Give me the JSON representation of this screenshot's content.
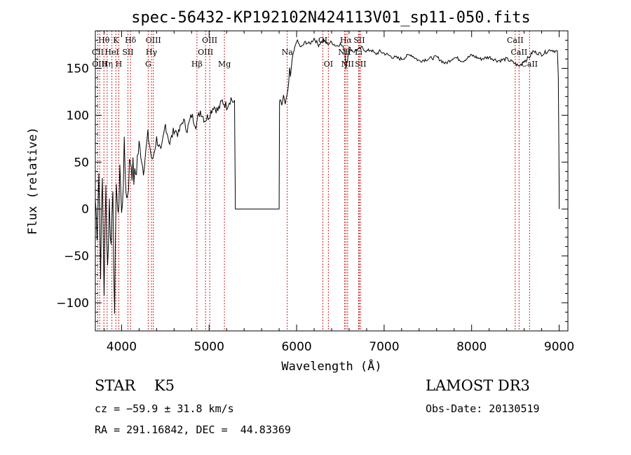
{
  "chart_data": {
    "type": "line",
    "title": "spec-56432-KP192102N424113V01_sp11-050.fits",
    "xlabel": "Wavelength (Å)",
    "ylabel": "Flux (relative)",
    "xlim": [
      3700,
      9100
    ],
    "ylim": [
      -130,
      190
    ],
    "xticks": [
      4000,
      5000,
      6000,
      7000,
      8000,
      9000
    ],
    "xtick_labels": [
      "4000",
      "5000",
      "6000",
      "7000",
      "8000",
      "9000"
    ],
    "yticks": [
      -100,
      -50,
      0,
      50,
      100,
      150
    ],
    "ytick_labels": [
      "−100",
      "−50",
      "0",
      "50",
      "100",
      "150"
    ],
    "series": [
      {
        "name": "spectrum",
        "x": [
          3700,
          3720,
          3740,
          3760,
          3780,
          3800,
          3820,
          3840,
          3860,
          3880,
          3900,
          3920,
          3940,
          3960,
          3980,
          4000,
          4030,
          4060,
          4100,
          4150,
          4200,
          4250,
          4300,
          4350,
          4400,
          4450,
          4500,
          4550,
          4600,
          4650,
          4700,
          4750,
          4800,
          4850,
          4900,
          4950,
          5000,
          5050,
          5100,
          5150,
          5200,
          5250,
          5290,
          5300,
          5305,
          5310,
          5800,
          5805,
          5810,
          5830,
          5850,
          5870,
          5890,
          5910,
          5920,
          5930,
          5950,
          5970,
          6000,
          6050,
          6100,
          6150,
          6200,
          6250,
          6300,
          6350,
          6400,
          6450,
          6500,
          6550,
          6563,
          6600,
          6650,
          6700,
          6750,
          6800,
          6850,
          6900,
          6950,
          7000,
          7100,
          7200,
          7300,
          7400,
          7500,
          7600,
          7700,
          7800,
          7900,
          8000,
          8100,
          8200,
          8300,
          8400,
          8500,
          8540,
          8600,
          8660,
          8700,
          8800,
          8900,
          8980,
          8990,
          9000,
          9001
        ],
        "y": [
          10,
          -20,
          40,
          -60,
          30,
          -85,
          20,
          -60,
          5,
          -40,
          30,
          -127,
          40,
          -20,
          50,
          -10,
          60,
          10,
          55,
          30,
          70,
          40,
          80,
          50,
          75,
          60,
          90,
          70,
          85,
          80,
          95,
          85,
          100,
          90,
          105,
          95,
          100,
          110,
          105,
          115,
          110,
          118,
          112,
          0,
          0,
          0,
          0,
          115,
          118,
          110,
          120,
          112,
          120,
          135,
          150,
          140,
          160,
          168,
          180,
          172,
          178,
          176,
          182,
          175,
          180,
          176,
          178,
          174,
          176,
          170,
          150,
          172,
          168,
          170,
          172,
          168,
          170,
          165,
          168,
          166,
          162,
          160,
          165,
          158,
          160,
          162,
          155,
          162,
          158,
          164,
          160,
          162,
          158,
          160,
          155,
          152,
          158,
          162,
          168,
          165,
          170,
          168,
          140,
          30,
          0
        ],
        "visible": true
      }
    ],
    "line_markers": [
      {
        "label": "Hθ",
        "wave": 3798,
        "row": 0
      },
      {
        "label": "CII",
        "wave": 3728,
        "row": 1
      },
      {
        "label": "OIII",
        "wave": 3750,
        "row": 2
      },
      {
        "label": "Hη",
        "wave": 3835,
        "row": 2
      },
      {
        "label": "HeI",
        "wave": 3889,
        "row": 1
      },
      {
        "label": "K",
        "wave": 3934,
        "row": 0
      },
      {
        "label": "H",
        "wave": 3968,
        "row": 2
      },
      {
        "label": "SII",
        "wave": 4072,
        "row": 1
      },
      {
        "label": "Hδ",
        "wave": 4102,
        "row": 0
      },
      {
        "label": "OIII",
        "wave": 4363,
        "row": 0
      },
      {
        "label": "Hγ",
        "wave": 4341,
        "row": 1
      },
      {
        "label": "G",
        "wave": 4304,
        "row": 2
      },
      {
        "label": "Hβ",
        "wave": 4861,
        "row": 2
      },
      {
        "label": "OIII",
        "wave": 4959,
        "row": 1
      },
      {
        "label": "OIII",
        "wave": 5007,
        "row": 0
      },
      {
        "label": "Mg",
        "wave": 5175,
        "row": 2
      },
      {
        "label": "Na",
        "wave": 5893,
        "row": 1
      },
      {
        "label": "OI",
        "wave": 6300,
        "row": 0
      },
      {
        "label": "OI",
        "wave": 6363,
        "row": 2
      },
      {
        "label": "Hα",
        "wave": 6563,
        "row": 0
      },
      {
        "label": "NII",
        "wave": 6548,
        "row": 1
      },
      {
        "label": "NII",
        "wave": 6583,
        "row": 2
      },
      {
        "label": "SII",
        "wave": 6716,
        "row": 0
      },
      {
        "label": "SII",
        "wave": 6731,
        "row": 2
      },
      {
        "label": "Li",
        "wave": 6708,
        "row": 1
      },
      {
        "label": "CaII",
        "wave": 8498,
        "row": 0
      },
      {
        "label": "CaII",
        "wave": 8542,
        "row": 1
      },
      {
        "label": "CaII",
        "wave": 8662,
        "row": 2
      }
    ],
    "marker_color": "#cc2222"
  },
  "info": {
    "class_line": "STAR    K5",
    "cz_line": "cz = −59.9 ± 31.8 km/s",
    "radec_line": "RA = 291.16842, DEC =  44.83369",
    "survey": "LAMOST DR3",
    "obs_date": "Obs-Date: 20130519"
  }
}
